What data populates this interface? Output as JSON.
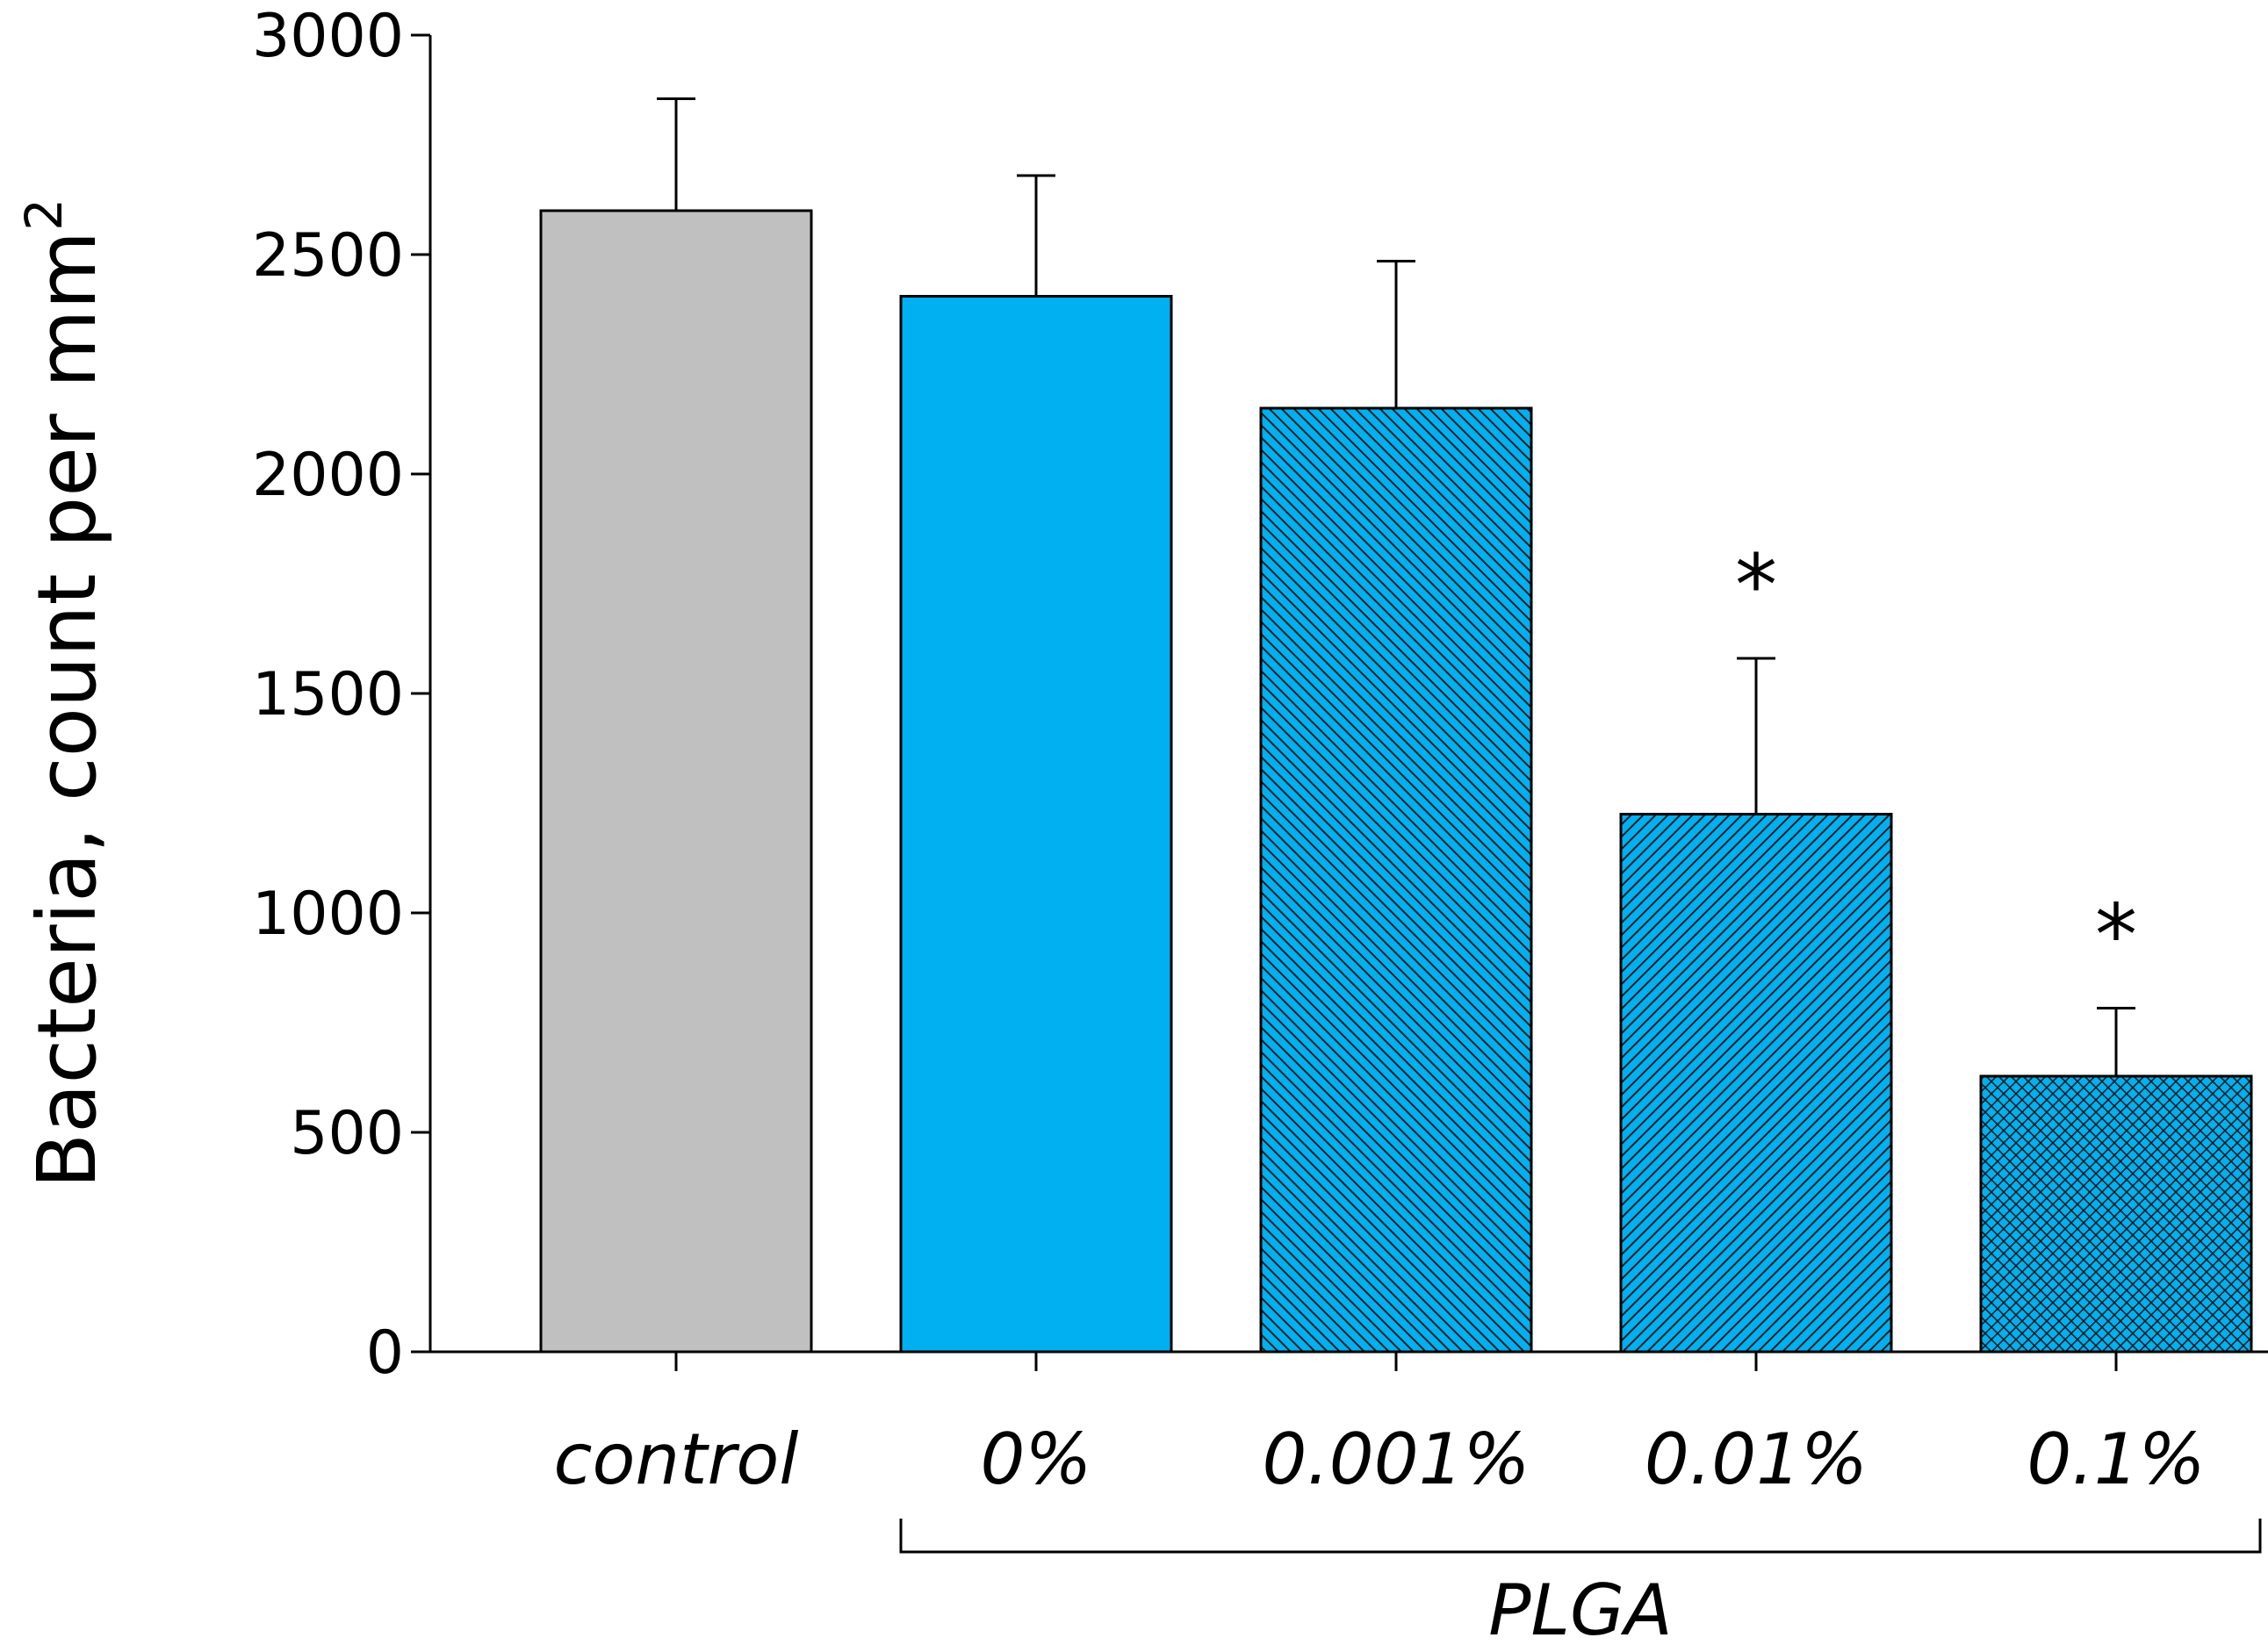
{
  "chart_data": {
    "type": "bar",
    "title": "",
    "xlabel": "",
    "ylabel": "Bacteria, count per mm",
    "ylabel_superscript": "2",
    "ylim": [
      0,
      3000
    ],
    "yticks": [
      0,
      500,
      1000,
      1500,
      2000,
      2500,
      3000
    ],
    "ytick_labels": [
      "0",
      "500",
      "1000",
      "1500",
      "2000",
      "2500",
      "3000"
    ],
    "categories": [
      "control",
      "0%",
      "0.001%",
      "0.01%",
      "0.1%"
    ],
    "values": [
      2600,
      2405,
      2150,
      1225,
      628
    ],
    "errors": [
      255,
      275,
      335,
      355,
      155
    ],
    "significance": [
      "",
      "",
      "",
      "*",
      "*"
    ],
    "fill_colors": [
      "#c0c0c0",
      "#00b0f0",
      "#00b0f0",
      "#00b0f0",
      "#00b0f0"
    ],
    "fill_patterns": [
      "solid",
      "solid",
      "diag-down",
      "diag-up",
      "crosshatch"
    ],
    "group": {
      "label": "PLGA",
      "categories": [
        "0%",
        "0.001%",
        "0.01%",
        "0.1%"
      ]
    },
    "grid": false,
    "legend": "none"
  }
}
